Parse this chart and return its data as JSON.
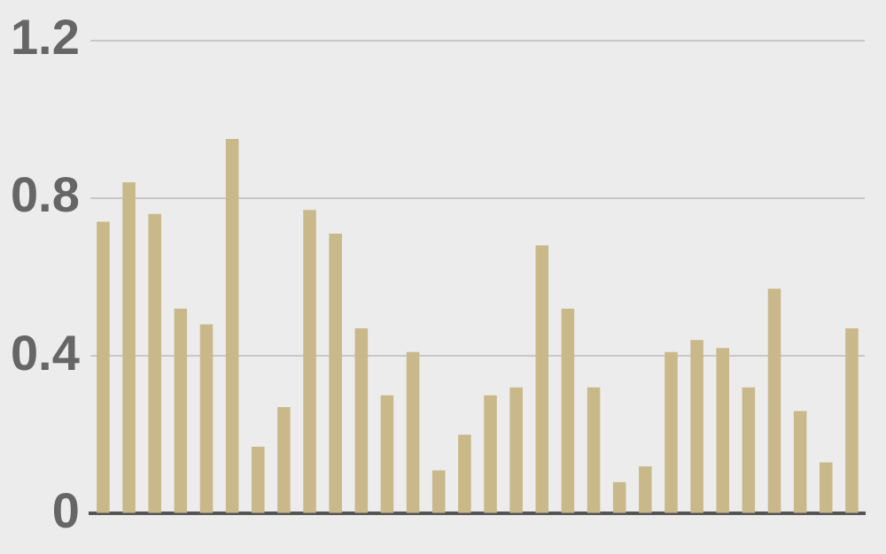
{
  "chart_data": {
    "type": "bar",
    "categories": [
      null,
      null,
      null,
      null,
      null,
      null,
      null,
      null,
      null,
      null,
      null,
      null,
      null,
      null,
      null,
      null,
      null,
      null,
      null,
      null,
      null,
      null,
      null,
      null,
      null,
      null,
      null,
      null,
      null,
      null
    ],
    "values": [
      0.74,
      0.84,
      0.76,
      0.52,
      0.48,
      0.95,
      0.17,
      0.27,
      0.77,
      0.71,
      0.47,
      0.3,
      0.41,
      0.11,
      0.2,
      0.3,
      0.32,
      0.68,
      0.52,
      0.32,
      0.08,
      0.12,
      0.41,
      0.44,
      0.42,
      0.32,
      0.57,
      0.26,
      0.13,
      0.47
    ],
    "color": "#c9b98a",
    "ylim": [
      0,
      1.2
    ],
    "yticks": [
      0,
      0.4,
      0.8,
      1.2
    ],
    "grid": "y",
    "legend": false
  }
}
